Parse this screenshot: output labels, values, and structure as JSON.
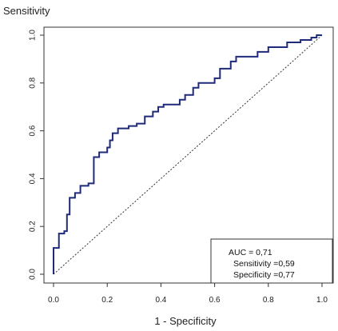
{
  "chart_data": {
    "type": "line",
    "xlabel": "1 - Specificity",
    "ylabel": "Sensitivity",
    "xlim": [
      0,
      1
    ],
    "ylim": [
      0,
      1
    ],
    "x_ticks": [
      "0.0",
      "0.2",
      "0.4",
      "0.6",
      "0.8",
      "1.0"
    ],
    "y_ticks": [
      "0.0",
      "0.2",
      "0.4",
      "0.6",
      "0.8",
      "1.0"
    ],
    "grid": false,
    "legend_position": "bottom-right",
    "series": [
      {
        "color": "#1f2a7a",
        "points": [
          [
            0.0,
            0.0
          ],
          [
            0.0,
            0.11
          ],
          [
            0.02,
            0.11
          ],
          [
            0.02,
            0.17
          ],
          [
            0.04,
            0.17
          ],
          [
            0.04,
            0.18
          ],
          [
            0.05,
            0.18
          ],
          [
            0.05,
            0.25
          ],
          [
            0.06,
            0.25
          ],
          [
            0.06,
            0.32
          ],
          [
            0.08,
            0.32
          ],
          [
            0.08,
            0.34
          ],
          [
            0.1,
            0.34
          ],
          [
            0.1,
            0.37
          ],
          [
            0.13,
            0.37
          ],
          [
            0.13,
            0.38
          ],
          [
            0.15,
            0.38
          ],
          [
            0.15,
            0.49
          ],
          [
            0.17,
            0.49
          ],
          [
            0.17,
            0.51
          ],
          [
            0.2,
            0.51
          ],
          [
            0.2,
            0.53
          ],
          [
            0.21,
            0.53
          ],
          [
            0.21,
            0.56
          ],
          [
            0.22,
            0.56
          ],
          [
            0.22,
            0.59
          ],
          [
            0.24,
            0.59
          ],
          [
            0.24,
            0.61
          ],
          [
            0.28,
            0.61
          ],
          [
            0.28,
            0.62
          ],
          [
            0.31,
            0.62
          ],
          [
            0.31,
            0.63
          ],
          [
            0.34,
            0.63
          ],
          [
            0.34,
            0.66
          ],
          [
            0.37,
            0.66
          ],
          [
            0.37,
            0.68
          ],
          [
            0.39,
            0.68
          ],
          [
            0.39,
            0.7
          ],
          [
            0.41,
            0.7
          ],
          [
            0.41,
            0.71
          ],
          [
            0.47,
            0.71
          ],
          [
            0.47,
            0.73
          ],
          [
            0.49,
            0.73
          ],
          [
            0.49,
            0.75
          ],
          [
            0.52,
            0.75
          ],
          [
            0.52,
            0.78
          ],
          [
            0.54,
            0.78
          ],
          [
            0.54,
            0.8
          ],
          [
            0.6,
            0.8
          ],
          [
            0.6,
            0.82
          ],
          [
            0.62,
            0.82
          ],
          [
            0.62,
            0.86
          ],
          [
            0.66,
            0.86
          ],
          [
            0.66,
            0.89
          ],
          [
            0.68,
            0.89
          ],
          [
            0.68,
            0.91
          ],
          [
            0.76,
            0.91
          ],
          [
            0.76,
            0.93
          ],
          [
            0.8,
            0.93
          ],
          [
            0.8,
            0.95
          ],
          [
            0.87,
            0.95
          ],
          [
            0.87,
            0.97
          ],
          [
            0.92,
            0.97
          ],
          [
            0.92,
            0.98
          ],
          [
            0.96,
            0.98
          ],
          [
            0.96,
            0.99
          ],
          [
            0.98,
            0.99
          ],
          [
            0.98,
            1.0
          ],
          [
            1.0,
            1.0
          ]
        ]
      },
      {
        "color": "#333333",
        "style": "dotted",
        "points": [
          [
            0,
            0
          ],
          [
            1,
            1
          ]
        ]
      }
    ],
    "annotations": [
      "AUC = 0,71",
      "Sensitivity =0,59",
      "Specificity =0,77"
    ]
  }
}
